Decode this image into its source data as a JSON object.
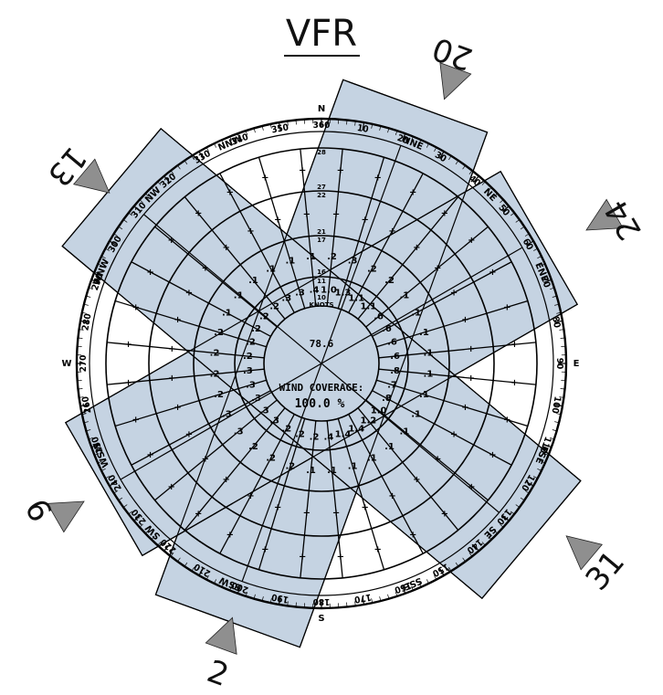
{
  "title": "VFR",
  "center": {
    "value": "78.6",
    "label": "WIND COVERAGE:",
    "percent": "100.0 %"
  },
  "speed_labels": [
    "10\nKNOTS",
    "11",
    "16",
    "17",
    "21",
    "22",
    "27",
    "28"
  ],
  "cardinals": [
    "N",
    "NNE",
    "NE",
    "ENE",
    "E",
    "ESE",
    "SE",
    "SSE",
    "S",
    "SSW",
    "SW",
    "WSW",
    "W",
    "WNW",
    "NW",
    "NNW"
  ],
  "degree_labels": [
    "10",
    "20",
    "30",
    "40",
    "50",
    "60",
    "70",
    "80",
    "90",
    "100",
    "110",
    "120",
    "130",
    "140",
    "150",
    "160",
    "170",
    "180",
    "190",
    "200",
    "210",
    "220",
    "230",
    "240",
    "250",
    "260",
    "270",
    "280",
    "290",
    "300",
    "310",
    "320",
    "330",
    "340",
    "350",
    "360"
  ],
  "runways": [
    {
      "label": "20",
      "heading": 200
    },
    {
      "label": "24",
      "heading": 240
    },
    {
      "label": "31",
      "heading": 310
    },
    {
      "label": "2",
      "heading": 20
    },
    {
      "label": "6",
      "heading": 60
    },
    {
      "label": "13",
      "heading": 130
    }
  ],
  "colors": {
    "band": "#c5d3e2",
    "ink": "#000000",
    "marker": "#8f8f8f"
  },
  "ring1": [
    "1.0",
    "1.3",
    "1.1",
    "1.1",
    ".6",
    ".6",
    ".6",
    ".6",
    ".8",
    ".7",
    ".8",
    "1.0",
    "1.2",
    "1.4",
    "1.4",
    ".4",
    ".2",
    ".2",
    ".2",
    ".3",
    ".3",
    ".3",
    ".3",
    ".3",
    ".2",
    ".2",
    ".2",
    ".2",
    ".2",
    ".3",
    ".3",
    ".4"
  ],
  "ring2": [
    ".2",
    ".3",
    ".2",
    ".2",
    ".1",
    ".1",
    ".1",
    ".1",
    ".1",
    ".1",
    ".1",
    ".1",
    ".1",
    ".1",
    ".1",
    ".1",
    ".1",
    ".2",
    ".2",
    ".2",
    ".3",
    ".3",
    ".2",
    ".2",
    ".2",
    ".2",
    ".1",
    ".1",
    ".1",
    ".1",
    ".1",
    ".1"
  ]
}
